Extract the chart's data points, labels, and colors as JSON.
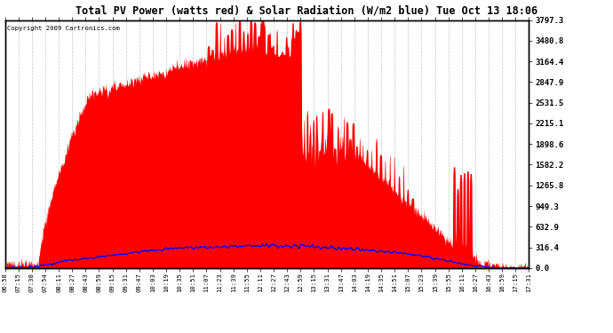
{
  "title": "Total PV Power (watts red) & Solar Radiation (W/m2 blue) Tue Oct 13 18:06",
  "copyright": "Copyright 2009 Cartronics.com",
  "background_color": "#ffffff",
  "plot_bg_color": "#ffffff",
  "grid_color": "#aaaaaa",
  "pv_color": "#ff0000",
  "solar_color": "#0000ff",
  "ymax": 3797.3,
  "ymin": 0.0,
  "yticks": [
    0.0,
    316.4,
    632.9,
    949.3,
    1265.8,
    1582.2,
    1898.6,
    2215.1,
    2531.5,
    2847.9,
    3164.4,
    3480.8,
    3797.3
  ],
  "ytick_labels": [
    "0.0",
    "316.4",
    "632.9",
    "949.3",
    "1265.8",
    "1582.2",
    "1898.6",
    "2215.1",
    "2531.5",
    "2847.9",
    "3164.4",
    "3480.8",
    "3797.3"
  ],
  "x_tick_labels": [
    "06:58",
    "07:15",
    "07:38",
    "07:54",
    "08:11",
    "08:27",
    "08:43",
    "08:59",
    "09:15",
    "09:31",
    "09:47",
    "10:03",
    "10:19",
    "10:35",
    "10:51",
    "11:07",
    "11:23",
    "11:39",
    "11:55",
    "12:11",
    "12:27",
    "12:43",
    "12:59",
    "13:15",
    "13:31",
    "13:47",
    "14:03",
    "14:19",
    "14:35",
    "14:51",
    "15:07",
    "15:23",
    "15:39",
    "15:55",
    "16:11",
    "16:27",
    "16:43",
    "16:59",
    "17:15",
    "17:31"
  ]
}
